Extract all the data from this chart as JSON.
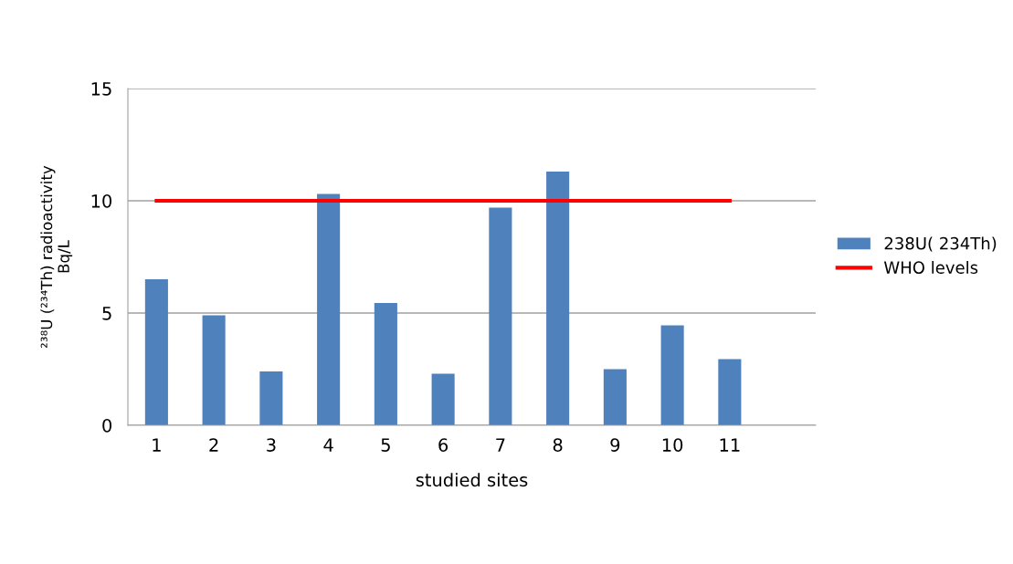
{
  "chart_data": {
    "type": "bar",
    "xlabel": "studied sites",
    "ylabel": "²³⁸U (²³⁴Th) radioactivity\nBq/L",
    "categories": [
      "1",
      "2",
      "3",
      "4",
      "5",
      "6",
      "7",
      "8",
      "9",
      "10",
      "11",
      null
    ],
    "series": [
      {
        "name": "238U( 234Th)",
        "color": "#4f81bd",
        "values": [
          6.5,
          4.9,
          2.4,
          10.3,
          5.45,
          2.3,
          9.7,
          11.3,
          2.5,
          4.45,
          2.95,
          null
        ]
      },
      {
        "name": "WHO levels",
        "type": "line",
        "color": "#ff0000",
        "line_style": "solid",
        "marker": "none",
        "values": [
          10,
          10,
          10,
          10,
          10,
          10,
          10,
          10,
          10,
          10,
          10,
          null
        ]
      }
    ],
    "ylim": [
      0,
      15
    ],
    "yticks": [
      0,
      5,
      10,
      15
    ],
    "grid": "y",
    "legend": "right"
  }
}
